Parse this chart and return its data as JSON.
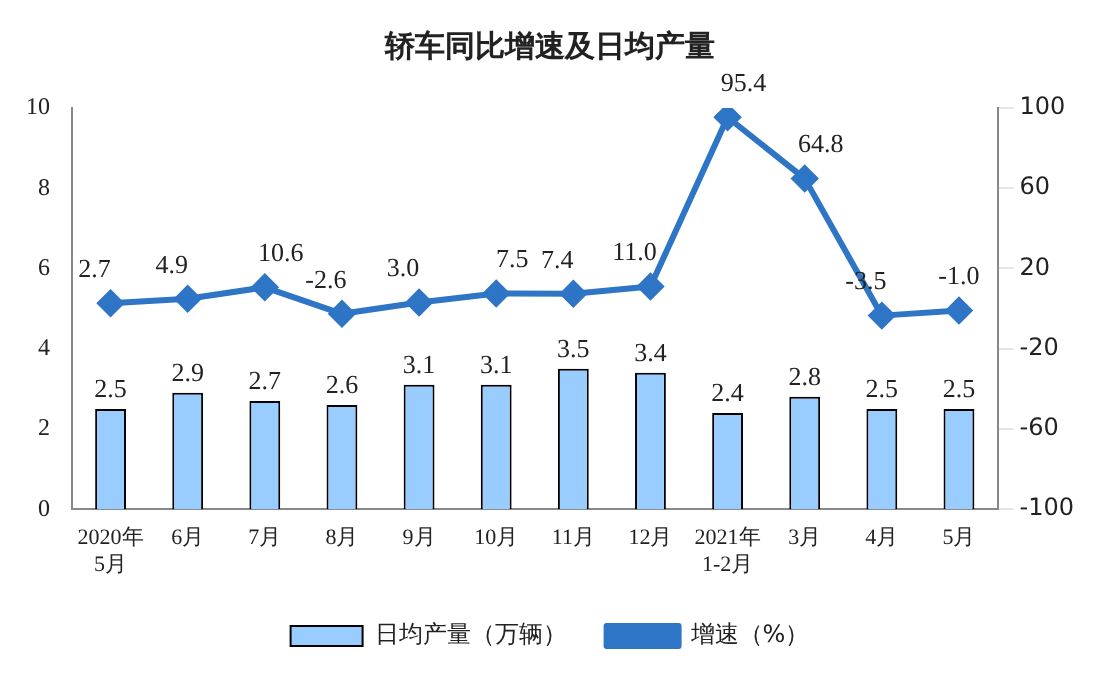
{
  "chart_data": {
    "type": "bar",
    "title": "轿车同比增速及日均产量",
    "categories": [
      "2020年\n5月",
      "6月",
      "7月",
      "8月",
      "9月",
      "10月",
      "11月",
      "12月",
      "2021年\n1-2月",
      "3月",
      "4月",
      "5月"
    ],
    "series": [
      {
        "name": "日均产量（万辆）",
        "color": "#99ccff",
        "values": [
          2.5,
          2.9,
          2.7,
          2.6,
          3.1,
          3.1,
          3.5,
          3.4,
          2.4,
          2.8,
          2.5,
          2.5
        ],
        "value_labels": [
          "2.5",
          "2.9",
          "2.7",
          "2.6",
          "3.1",
          "3.1",
          "3.5",
          "3.4",
          "2.4",
          "2.8",
          "2.5",
          "2.5"
        ]
      },
      {
        "name": "增速（%）",
        "type": "line",
        "axis": "y2",
        "color": "#2e75c6",
        "marker": "diamond",
        "values": [
          2.7,
          4.9,
          10.6,
          -2.6,
          3.0,
          7.5,
          7.4,
          11.0,
          95.4,
          64.8,
          -3.5,
          -1.0
        ],
        "value_labels": [
          "2.7",
          "4.9",
          "10.6",
          "-2.6",
          "3.0",
          "7.5",
          "7.4",
          "11.0",
          "95.4",
          "64.8",
          "-3.5",
          "-1.0"
        ]
      }
    ],
    "ylim": [
      0,
      10
    ],
    "yticks": [
      0,
      2,
      4,
      6,
      8,
      10
    ],
    "y2lim": [
      -100,
      100
    ],
    "y2ticks": [
      -100,
      -60,
      -20,
      20,
      60,
      100
    ],
    "grid": false,
    "legend": "bottom"
  }
}
